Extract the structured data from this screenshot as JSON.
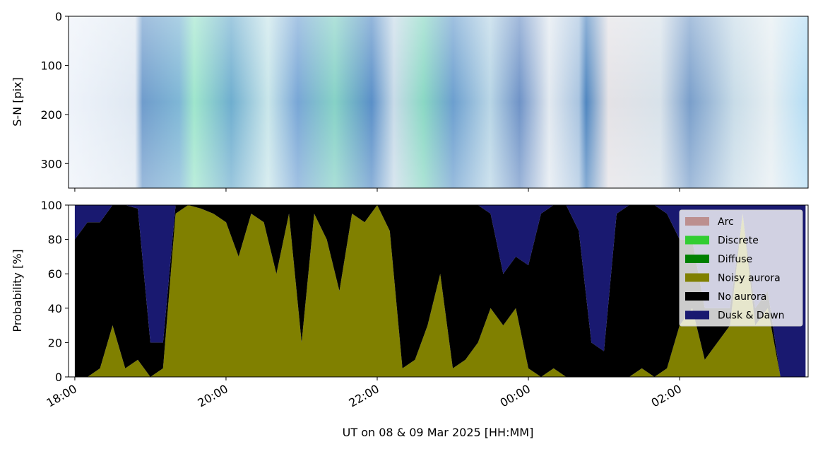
{
  "chart_data": [
    {
      "type": "image",
      "ylabel": "S-N [pix]",
      "ylim": [
        0,
        350
      ],
      "y_inverted": true,
      "yticks": [
        0,
        100,
        200,
        300
      ]
    },
    {
      "type": "stacked_area",
      "ylabel": "Probability [%]",
      "xlabel": "UT on 08 & 09 Mar 2025 [HH:MM]",
      "x": [
        "2025-03-08T18:00",
        "2025-03-08T18:10",
        "2025-03-08T18:20",
        "2025-03-08T18:30",
        "2025-03-08T18:40",
        "2025-03-08T18:50",
        "2025-03-08T19:00",
        "2025-03-08T19:10",
        "2025-03-08T19:20",
        "2025-03-08T19:30",
        "2025-03-08T19:40",
        "2025-03-08T19:50",
        "2025-03-08T20:00",
        "2025-03-08T20:10",
        "2025-03-08T20:20",
        "2025-03-08T20:30",
        "2025-03-08T20:40",
        "2025-03-08T20:50",
        "2025-03-08T21:00",
        "2025-03-08T21:10",
        "2025-03-08T21:20",
        "2025-03-08T21:30",
        "2025-03-08T21:40",
        "2025-03-08T21:50",
        "2025-03-08T22:00",
        "2025-03-08T22:10",
        "2025-03-08T22:20",
        "2025-03-08T22:30",
        "2025-03-08T22:40",
        "2025-03-08T22:50",
        "2025-03-08T23:00",
        "2025-03-08T23:10",
        "2025-03-08T23:20",
        "2025-03-08T23:30",
        "2025-03-08T23:40",
        "2025-03-08T23:50",
        "2025-03-09T00:00",
        "2025-03-09T00:10",
        "2025-03-09T00:20",
        "2025-03-09T00:30",
        "2025-03-09T00:40",
        "2025-03-09T00:50",
        "2025-03-09T01:00",
        "2025-03-09T01:10",
        "2025-03-09T01:20",
        "2025-03-09T01:30",
        "2025-03-09T01:40",
        "2025-03-09T01:50",
        "2025-03-09T02:00",
        "2025-03-09T02:10",
        "2025-03-09T02:20",
        "2025-03-09T02:30",
        "2025-03-09T02:40",
        "2025-03-09T02:50",
        "2025-03-09T03:00",
        "2025-03-09T03:10",
        "2025-03-09T03:20",
        "2025-03-09T03:30",
        "2025-03-09T03:40"
      ],
      "xlim": [
        "2025-03-08T17:55",
        "2025-03-09T03:42"
      ],
      "xticks": [
        {
          "value": "2025-03-08T18:00",
          "label": "18:00"
        },
        {
          "value": "2025-03-08T20:00",
          "label": "20:00"
        },
        {
          "value": "2025-03-08T22:00",
          "label": "22:00"
        },
        {
          "value": "2025-03-09T00:00",
          "label": "00:00"
        },
        {
          "value": "2025-03-09T02:00",
          "label": "02:00"
        }
      ],
      "ylim": [
        0,
        100
      ],
      "yticks": [
        0,
        20,
        40,
        60,
        80,
        100
      ],
      "legend": "upper right",
      "series": [
        {
          "name": "Arc",
          "color": "#bc8f8f",
          "values": [
            0,
            0,
            0,
            0,
            0,
            0,
            0,
            0,
            0,
            0,
            0,
            0,
            0,
            0,
            0,
            0,
            0,
            0,
            0,
            0,
            0,
            0,
            0,
            0,
            0,
            0,
            0,
            0,
            0,
            0,
            0,
            0,
            0,
            0,
            0,
            0,
            0,
            0,
            0,
            0,
            0,
            0,
            0,
            0,
            0,
            0,
            0,
            0,
            0,
            0,
            0,
            0,
            0,
            0,
            0,
            0,
            0,
            0,
            0
          ]
        },
        {
          "name": "Discrete",
          "color": "#32cd32",
          "values": [
            0,
            0,
            0,
            0,
            0,
            0,
            0,
            0,
            0,
            0,
            0,
            0,
            0,
            0,
            0,
            0,
            0,
            0,
            0,
            0,
            0,
            0,
            0,
            0,
            0,
            0,
            0,
            0,
            0,
            0,
            0,
            0,
            0,
            0,
            0,
            0,
            0,
            0,
            0,
            0,
            0,
            0,
            0,
            0,
            0,
            0,
            0,
            0,
            0,
            0,
            0,
            0,
            0,
            0,
            0,
            0,
            0,
            0,
            0
          ]
        },
        {
          "name": "Diffuse",
          "color": "#008000",
          "values": [
            0,
            0,
            0,
            0,
            0,
            0,
            0,
            0,
            0,
            0,
            0,
            0,
            0,
            0,
            0,
            0,
            0,
            0,
            0,
            0,
            0,
            0,
            0,
            0,
            0,
            0,
            0,
            0,
            0,
            0,
            0,
            0,
            0,
            0,
            0,
            0,
            0,
            0,
            0,
            0,
            0,
            0,
            0,
            0,
            0,
            0,
            0,
            0,
            0,
            0,
            0,
            0,
            0,
            0,
            0,
            0,
            0,
            0,
            0
          ]
        },
        {
          "name": "Noisy aurora",
          "color": "#808000",
          "values": [
            0,
            0,
            5,
            30,
            5,
            10,
            0,
            5,
            95,
            100,
            98,
            95,
            90,
            70,
            95,
            90,
            60,
            95,
            20,
            95,
            80,
            50,
            95,
            90,
            100,
            85,
            5,
            10,
            30,
            60,
            5,
            10,
            20,
            40,
            30,
            40,
            5,
            0,
            5,
            0,
            0,
            0,
            0,
            0,
            0,
            5,
            0,
            5,
            30,
            40,
            10,
            20,
            30,
            95,
            30,
            40,
            0,
            0,
            0
          ]
        },
        {
          "name": "No aurora",
          "color": "#000000",
          "values": [
            80,
            90,
            85,
            70,
            95,
            88,
            20,
            15,
            5,
            0,
            2,
            5,
            10,
            30,
            5,
            10,
            40,
            5,
            80,
            5,
            20,
            50,
            5,
            10,
            0,
            15,
            95,
            90,
            70,
            40,
            95,
            90,
            80,
            55,
            30,
            30,
            60,
            95,
            95,
            100,
            85,
            20,
            15,
            95,
            100,
            95,
            100,
            90,
            50,
            40,
            30,
            20,
            10,
            0,
            10,
            10,
            0,
            0,
            0
          ]
        },
        {
          "name": "Dusk & Dawn",
          "color": "#191970",
          "values": [
            20,
            10,
            10,
            0,
            0,
            2,
            80,
            80,
            0,
            0,
            0,
            0,
            0,
            0,
            0,
            0,
            0,
            0,
            0,
            0,
            0,
            0,
            0,
            0,
            0,
            0,
            0,
            0,
            0,
            0,
            0,
            0,
            0,
            5,
            40,
            30,
            35,
            5,
            0,
            0,
            15,
            80,
            85,
            5,
            0,
            0,
            0,
            5,
            20,
            20,
            60,
            60,
            60,
            5,
            60,
            50,
            100,
            100,
            100
          ]
        }
      ]
    }
  ]
}
